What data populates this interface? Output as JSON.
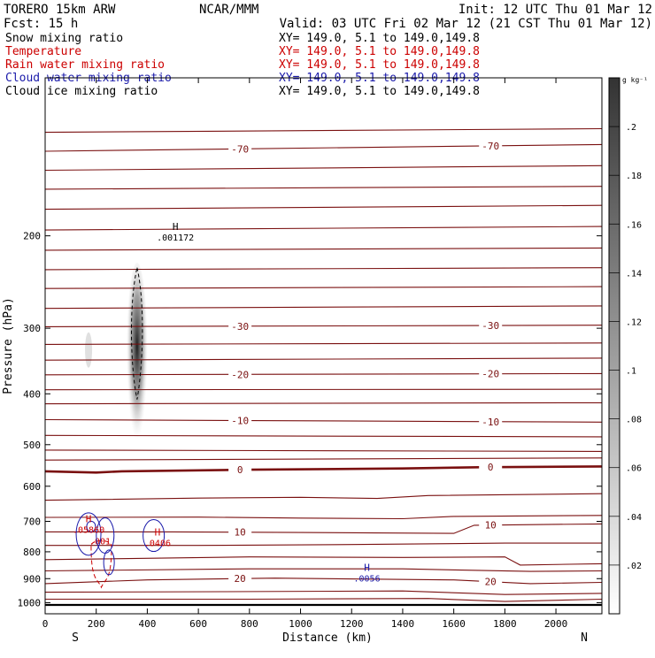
{
  "header": {
    "model": "TORERO  15km ARW",
    "center": "NCAR/MMM",
    "init": "Init: 12 UTC Thu 01 Mar 12",
    "fcst": "Fcst:   15 h",
    "valid": "Valid: 03 UTC Fri 02 Mar 12 (21 CST Thu 01 Mar 12)"
  },
  "fields": [
    {
      "name": "Snow mixing ratio",
      "xsect": "XY= 149.0,  5.1 to 149.0,149.8",
      "color": "#000000"
    },
    {
      "name": "Temperature",
      "xsect": "XY= 149.0,  5.1 to 149.0,149.8",
      "color": "#cc0000"
    },
    {
      "name": "Rain water mixing ratio",
      "xsect": "XY= 149.0,  5.1 to 149.0,149.8",
      "color": "#cc0000"
    },
    {
      "name": "Cloud water mixing ratio",
      "xsect": "XY= 149.0,  5.1 to 149.0,149.8",
      "color": "#1a1aaa"
    },
    {
      "name": "Cloud ice mixing ratio",
      "xsect": "XY= 149.0,  5.1 to 149.0,149.8",
      "color": "#000000"
    }
  ],
  "chart_data": {
    "type": "contour cross-section",
    "xlabel": "Distance (km)",
    "ylabel": "Pressure (hPa)",
    "xlim": [
      0,
      2180
    ],
    "ylim": [
      1050,
      100
    ],
    "y_log": true,
    "x_ticks": [
      0,
      200,
      400,
      600,
      800,
      1000,
      1200,
      1400,
      1600,
      1800,
      2000
    ],
    "y_ticks": [
      200,
      300,
      400,
      500,
      600,
      700,
      800,
      900,
      1000
    ],
    "x_endpoints": {
      "left": "S",
      "right": "N"
    },
    "colorbar": {
      "unit": "g kg⁻¹",
      "ticks": [
        ".02",
        ".04",
        ".06",
        ".08",
        ".1",
        ".12",
        ".14",
        ".16",
        ".18",
        ".2"
      ],
      "tick_values": [
        0.02,
        0.04,
        0.06,
        0.08,
        0.1,
        0.12,
        0.14,
        0.16,
        0.18,
        0.2
      ],
      "min": 0,
      "max": 0.22
    },
    "isotherms": [
      {
        "label": "-70",
        "x": [
          0,
          2180
        ],
        "p": [
          138,
          134
        ]
      },
      {
        "label": "",
        "x": [
          0,
          2180
        ],
        "p": [
          127,
          125
        ]
      },
      {
        "label": "",
        "x": [
          0,
          2180
        ],
        "p": [
          150,
          147
        ]
      },
      {
        "label": "",
        "x": [
          0,
          2180
        ],
        "p": [
          163,
          161
        ]
      },
      {
        "label": "",
        "x": [
          0,
          2180
        ],
        "p": [
          178,
          175
        ]
      },
      {
        "label": "",
        "x": [
          0,
          2180
        ],
        "p": [
          195,
          192
        ]
      },
      {
        "label": "",
        "x": [
          0,
          2180
        ],
        "p": [
          213,
          211
        ]
      },
      {
        "label": "",
        "x": [
          0,
          2180
        ],
        "p": [
          232,
          230
        ]
      },
      {
        "label": "",
        "x": [
          0,
          2180
        ],
        "p": [
          252,
          250
        ]
      },
      {
        "label": "",
        "x": [
          0,
          2180
        ],
        "p": [
          275,
          272
        ]
      },
      {
        "label": "-30",
        "x": [
          0,
          2180
        ],
        "p": [
          298,
          296
        ]
      },
      {
        "label": "",
        "x": [
          0,
          2180
        ],
        "p": [
          322,
          320
        ]
      },
      {
        "label": "",
        "x": [
          0,
          2180
        ],
        "p": [
          345,
          342
        ]
      },
      {
        "label": "-20",
        "x": [
          0,
          2180
        ],
        "p": [
          368,
          366
        ]
      },
      {
        "label": "",
        "x": [
          0,
          2180
        ],
        "p": [
          393,
          392
        ]
      },
      {
        "label": "",
        "x": [
          0,
          2180
        ],
        "p": [
          418,
          416
        ]
      },
      {
        "label": "-10",
        "x": [
          0,
          2180
        ],
        "p": [
          448,
          453
        ]
      },
      {
        "label": "",
        "x": [
          0,
          2180
        ],
        "p": [
          480,
          483
        ]
      },
      {
        "label": "",
        "x": [
          0,
          2180
        ],
        "p": [
          512,
          515
        ]
      },
      {
        "label": "",
        "x": [
          0,
          2180
        ],
        "p": [
          535,
          530
        ]
      },
      {
        "label": "0",
        "x": [
          0,
          200,
          300,
          800,
          1400,
          1700,
          2180
        ],
        "p": [
          562,
          565,
          562,
          558,
          555,
          552,
          550
        ]
      },
      {
        "label": "",
        "x": [
          0,
          600,
          1000,
          1300,
          1500,
          2180
        ],
        "p": [
          638,
          632,
          630,
          633,
          625,
          620
        ]
      },
      {
        "label": "",
        "x": [
          0,
          600,
          1000,
          1400,
          1600,
          2180
        ],
        "p": [
          688,
          687,
          690,
          692,
          685,
          682
        ]
      },
      {
        "label": "10",
        "x": [
          0,
          500,
          1000,
          1600,
          1680,
          2180
        ],
        "p": [
          733,
          733,
          735,
          738,
          712,
          708
        ]
      },
      {
        "label": "",
        "x": [
          0,
          600,
          1200,
          1800,
          2180
        ],
        "p": [
          778,
          778,
          775,
          770,
          770
        ]
      },
      {
        "label": "",
        "x": [
          0,
          800,
          1400,
          1800,
          1860,
          2180
        ],
        "p": [
          828,
          818,
          820,
          818,
          848,
          843
        ]
      },
      {
        "label": "",
        "x": [
          0,
          800,
          1400,
          1900,
          2180
        ],
        "p": [
          870,
          862,
          862,
          872,
          870
        ]
      },
      {
        "label": "20",
        "x": [
          0,
          400,
          900,
          1600,
          1900,
          2180
        ],
        "p": [
          920,
          905,
          898,
          905,
          920,
          915
        ]
      },
      {
        "label": "",
        "x": [
          0,
          700,
          1400,
          1800,
          2180
        ],
        "p": [
          955,
          953,
          950,
          965,
          960
        ]
      },
      {
        "label": "",
        "x": [
          0,
          800,
          1500,
          1800,
          2180
        ],
        "p": [
          985,
          985,
          982,
          995,
          985
        ]
      }
    ],
    "snow_shading": {
      "x_center": 360,
      "p_top": 225,
      "p_bottom": 510,
      "max": 0.2
    },
    "cloud_ice_contours": [
      {
        "label": "",
        "x_center": 360,
        "p_top": 230,
        "p_bottom": 410
      }
    ],
    "rain_water_contours": [
      {
        "label": ".001",
        "x_range": [
          180,
          260
        ],
        "p_range": [
          780,
          935
        ]
      }
    ],
    "highs": [
      {
        "label": "H",
        "value": ".001172",
        "x": 510,
        "p": 195,
        "color": "#000000"
      },
      {
        "label": "H",
        "value": ".05860",
        "x": 170,
        "p": 703,
        "color": "#cc0000"
      },
      {
        "label": "H",
        "value": ".0406",
        "x": 440,
        "p": 745,
        "color": "#cc0000"
      },
      {
        "label": "H",
        "value": ".0056",
        "x": 1260,
        "p": 870,
        "color": "#1a1aaa"
      }
    ],
    "ground_p": 1010
  }
}
